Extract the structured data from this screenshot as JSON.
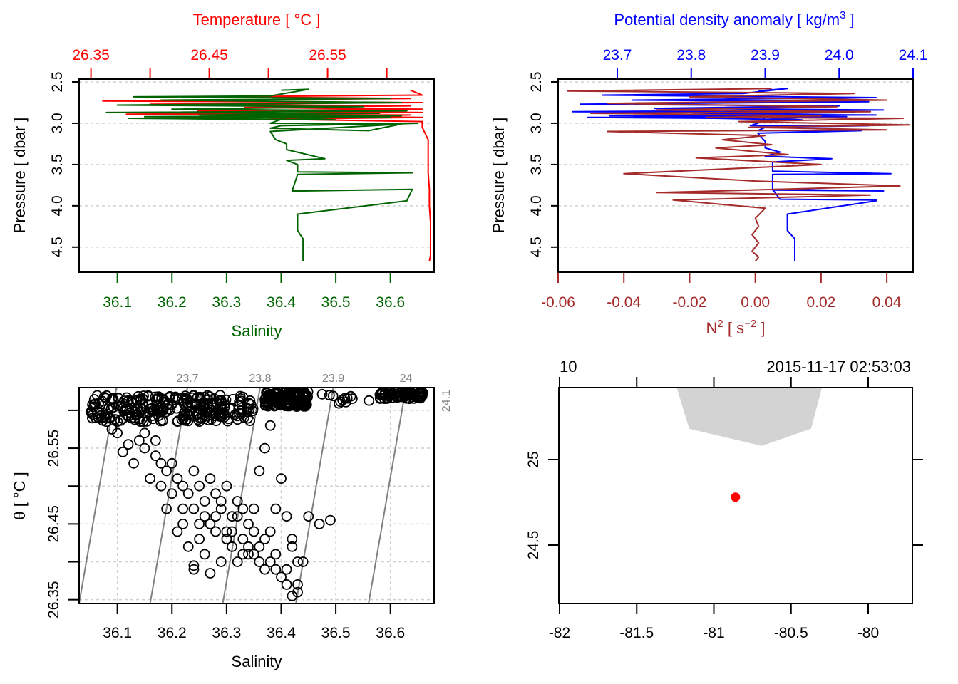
{
  "chart_data": [
    {
      "id": "profile-ts",
      "type": "line",
      "title": "",
      "ylabel": "Pressure [ dbar ]",
      "ylim": [
        2.5,
        4.7
      ],
      "y_reversed": true,
      "yticks": [
        2.5,
        3.0,
        3.5,
        4.0,
        4.5
      ],
      "ytick_labels": [
        "2.5",
        "3.0",
        "3.5",
        "4.0",
        "4.5"
      ],
      "grid": "horizontal-dotted",
      "top_axis": {
        "label": "Temperature [ °C ]",
        "color": "#ff0000",
        "range": [
          26.34,
          26.64
        ],
        "ticks": [
          26.35,
          26.4,
          26.45,
          26.5,
          26.55,
          26.6
        ],
        "tick_labels": [
          "26.35",
          "",
          "26.45",
          "",
          "26.55",
          ""
        ]
      },
      "bottom_axis": {
        "label": "Salinity",
        "color": "#006400",
        "range": [
          36.03,
          36.68
        ],
        "ticks": [
          36.1,
          36.2,
          36.3,
          36.4,
          36.5,
          36.6
        ],
        "tick_labels": [
          "36.1",
          "36.2",
          "36.3",
          "36.4",
          "36.5",
          "36.6"
        ]
      },
      "series": [
        {
          "name": "Temperature",
          "axis": "top",
          "color": "#ff0000",
          "x": [
            26.62,
            26.63,
            26.45,
            26.62,
            26.36,
            26.63,
            26.4,
            26.62,
            26.48,
            26.63,
            26.44,
            26.63,
            26.38,
            26.62,
            26.55,
            26.63,
            26.5,
            26.63,
            26.63,
            26.635,
            26.635,
            26.635,
            26.636,
            26.636,
            26.637,
            26.637,
            26.637,
            26.636
          ],
          "y": [
            2.6,
            2.66,
            2.68,
            2.7,
            2.73,
            2.75,
            2.77,
            2.79,
            2.81,
            2.83,
            2.85,
            2.87,
            2.89,
            2.9,
            2.92,
            2.93,
            2.95,
            2.98,
            3.05,
            3.2,
            3.4,
            3.6,
            3.8,
            4.0,
            4.2,
            4.4,
            4.6,
            4.67
          ]
        },
        {
          "name": "Salinity",
          "axis": "bottom",
          "color": "#006400",
          "x": [
            36.4,
            36.45,
            36.38,
            36.13,
            36.6,
            36.18,
            36.62,
            36.1,
            36.55,
            36.2,
            36.63,
            36.08,
            36.58,
            36.25,
            36.62,
            36.15,
            36.6,
            36.12,
            36.3,
            36.5,
            36.41,
            36.38,
            36.6,
            36.65,
            36.4,
            36.38,
            36.56,
            36.62,
            36.38,
            36.39,
            36.41,
            36.41,
            36.48,
            36.41,
            36.43,
            36.43,
            36.64,
            36.43,
            36.42,
            36.44,
            36.64,
            36.63,
            36.63,
            36.43,
            36.43,
            36.43,
            36.44,
            36.44,
            36.44
          ],
          "y": [
            2.6,
            2.59,
            2.67,
            2.68,
            2.7,
            2.72,
            2.75,
            2.78,
            2.8,
            2.83,
            2.85,
            2.87,
            2.88,
            2.9,
            2.91,
            2.92,
            2.93,
            2.94,
            2.95,
            2.96,
            2.93,
            3.0,
            3.01,
            3.0,
            3.03,
            3.06,
            3.09,
            3.01,
            3.1,
            3.2,
            3.25,
            3.32,
            3.43,
            3.45,
            3.5,
            3.59,
            3.6,
            3.62,
            3.82,
            3.82,
            3.8,
            3.94,
            3.94,
            4.1,
            4.2,
            4.3,
            4.4,
            4.5,
            4.67
          ]
        }
      ]
    },
    {
      "id": "profile-density-n2",
      "type": "line",
      "title": "",
      "ylabel": "Pressure [ dbar ]",
      "ylim": [
        2.5,
        4.7
      ],
      "y_reversed": true,
      "yticks": [
        2.5,
        3.0,
        3.5,
        4.0,
        4.5
      ],
      "ytick_labels": [
        "2.5",
        "3.0",
        "3.5",
        "4.0",
        "4.5"
      ],
      "grid": "horizontal-dotted",
      "top_axis": {
        "label": "Potential density anomaly [ kg/m",
        "label_sup": "3",
        "label_end": " ]",
        "color": "#0000ff",
        "range": [
          23.62,
          24.1
        ],
        "ticks": [
          23.7,
          23.8,
          23.9,
          24.0,
          24.1
        ],
        "tick_labels": [
          "23.7",
          "23.8",
          "23.9",
          "24.0",
          "24.1"
        ]
      },
      "bottom_axis": {
        "label": "N",
        "label_sup": "2",
        "label_mid": " [ s",
        "label_sup2": "−2",
        "label_end": " ]",
        "color": "#a52a2a",
        "range": [
          -0.06,
          0.048
        ],
        "ticks": [
          -0.06,
          -0.04,
          -0.02,
          0.0,
          0.02,
          0.04
        ],
        "tick_labels": [
          "-0.06",
          "-0.04",
          "-0.02",
          "0.00",
          "0.02",
          "0.04"
        ]
      },
      "series": [
        {
          "name": "Potential density anomaly",
          "axis": "top",
          "color": "#0000ff",
          "x": [
            23.89,
            23.93,
            23.87,
            23.68,
            24.05,
            23.72,
            24.04,
            23.65,
            24.0,
            23.75,
            24.06,
            23.64,
            24.02,
            23.8,
            24.05,
            23.69,
            24.01,
            23.66,
            23.83,
            23.95,
            23.9,
            23.89,
            23.88,
            24.04,
            23.9,
            23.89,
            24.03,
            23.89,
            23.9,
            23.9,
            23.92,
            23.9,
            23.99,
            23.91,
            23.91,
            24.07,
            23.91,
            23.91,
            24.06,
            23.91,
            23.92,
            24.05,
            24.05,
            23.93,
            23.93,
            23.93,
            23.94,
            23.94
          ],
          "y": [
            2.61,
            2.58,
            2.64,
            2.66,
            2.69,
            2.72,
            2.74,
            2.77,
            2.79,
            2.82,
            2.84,
            2.86,
            2.87,
            2.89,
            2.9,
            2.91,
            2.92,
            2.93,
            2.94,
            2.96,
            2.93,
            3.0,
            3.03,
            3.03,
            3.05,
            3.09,
            3.09,
            3.12,
            3.22,
            3.3,
            3.35,
            3.4,
            3.43,
            3.47,
            3.58,
            3.61,
            3.62,
            3.81,
            3.82,
            3.8,
            3.92,
            3.93,
            3.94,
            4.1,
            4.2,
            4.3,
            4.4,
            4.67
          ]
        },
        {
          "name": "N2",
          "axis": "bottom",
          "color": "#a52a2a",
          "x": [
            0.005,
            -0.057,
            0.03,
            -0.02,
            0.04,
            -0.045,
            0.025,
            -0.03,
            0.035,
            -0.05,
            0.02,
            -0.015,
            0.045,
            -0.005,
            0.047,
            -0.002,
            0.04,
            -0.045,
            0.003,
            -0.01,
            0.005,
            -0.012,
            0.01,
            -0.018,
            0.02,
            -0.04,
            0.0,
            0.044,
            -0.03,
            0.035,
            -0.025,
            0.003,
            0.0,
            0.001,
            -0.001,
            0.001,
            -0.001,
            0.001,
            0.0
          ],
          "y": [
            2.58,
            2.61,
            2.64,
            2.68,
            2.72,
            2.76,
            2.8,
            2.84,
            2.86,
            2.88,
            2.91,
            2.93,
            2.94,
            2.98,
            3.02,
            3.05,
            3.08,
            3.1,
            3.15,
            3.2,
            3.26,
            3.3,
            3.38,
            3.42,
            3.5,
            3.61,
            3.7,
            3.76,
            3.84,
            3.87,
            3.93,
            4.03,
            4.15,
            4.25,
            4.35,
            4.45,
            4.55,
            4.62,
            4.67
          ]
        }
      ]
    },
    {
      "id": "ts-diagram",
      "type": "scatter",
      "title": "",
      "xlabel": "Salinity",
      "ylabel": "θ [ °C ]",
      "xlim": [
        36.03,
        36.68
      ],
      "ylim": [
        26.345,
        26.63
      ],
      "xticks": [
        36.1,
        36.2,
        36.3,
        36.4,
        36.5,
        36.6
      ],
      "xtick_labels": [
        "36.1",
        "36.2",
        "36.3",
        "36.4",
        "36.5",
        "36.6"
      ],
      "yticks": [
        26.35,
        26.4,
        26.45,
        26.5,
        26.55,
        26.6
      ],
      "ytick_labels": [
        "26.35",
        "",
        "26.45",
        "",
        "26.55",
        ""
      ],
      "grid": "dotted",
      "isopycnals": {
        "color": "#808080",
        "levels": [
          23.6,
          23.7,
          23.8,
          23.9,
          24.0,
          24.1
        ],
        "labels": [
          "",
          "23.7",
          "23.8",
          "23.9",
          "24",
          "24.1"
        ],
        "bottom_salinity": [
          36.03,
          36.16,
          36.293,
          36.427,
          36.56,
          36.693
        ],
        "slope_s_per_degC": 0.24
      },
      "point_clusters": [
        {
          "s_min": 36.05,
          "s_max": 36.35,
          "t_min": 26.585,
          "t_max": 26.62,
          "n": 260
        },
        {
          "s_min": 36.37,
          "s_max": 36.45,
          "t_min": 26.605,
          "t_max": 26.625,
          "n": 150
        },
        {
          "s_min": 36.58,
          "s_max": 36.66,
          "t_min": 26.615,
          "t_max": 26.625,
          "n": 80
        },
        {
          "s_min": 36.45,
          "s_max": 36.57,
          "t_min": 26.608,
          "t_max": 26.622,
          "n": 12
        }
      ],
      "points": {
        "salinity": [
          36.06,
          36.08,
          36.09,
          36.1,
          36.12,
          36.11,
          36.14,
          36.15,
          36.17,
          36.18,
          36.19,
          36.2,
          36.21,
          36.22,
          36.23,
          36.24,
          36.25,
          36.26,
          36.27,
          36.28,
          36.29,
          36.3,
          36.31,
          36.32,
          36.33,
          36.34,
          36.35,
          36.36,
          36.37,
          36.38,
          36.39,
          36.4,
          36.41,
          36.42,
          36.43,
          36.13,
          36.16,
          36.19,
          36.22,
          36.25,
          36.28,
          36.31,
          36.34,
          36.37,
          36.2,
          36.24,
          36.27,
          36.3,
          36.33,
          36.36,
          36.39,
          36.42,
          36.45,
          36.47,
          36.49,
          36.18,
          36.21,
          36.23,
          36.26,
          36.29,
          36.32,
          36.35,
          36.38,
          36.41,
          36.44,
          36.25,
          36.28,
          36.31,
          36.34,
          36.37,
          36.4,
          36.43,
          36.22,
          36.26,
          36.3,
          36.33,
          36.36,
          36.39,
          36.41,
          36.43,
          36.42,
          36.15,
          36.17,
          36.24,
          36.29,
          36.32,
          36.35,
          36.38,
          36.27,
          36.24
        ],
        "theta": [
          26.59,
          26.585,
          26.575,
          26.57,
          26.555,
          26.545,
          26.56,
          26.55,
          26.54,
          26.53,
          26.52,
          26.53,
          26.51,
          26.5,
          26.49,
          26.52,
          26.5,
          26.48,
          26.51,
          26.49,
          26.47,
          26.5,
          26.46,
          26.48,
          26.47,
          26.45,
          26.44,
          26.52,
          26.55,
          26.58,
          26.47,
          26.51,
          26.46,
          26.43,
          26.4,
          26.53,
          26.51,
          26.47,
          26.45,
          26.43,
          26.46,
          26.44,
          26.42,
          26.43,
          26.49,
          26.47,
          26.45,
          26.43,
          26.41,
          26.42,
          26.41,
          26.42,
          26.46,
          26.45,
          26.455,
          26.5,
          26.44,
          26.42,
          26.41,
          26.4,
          26.4,
          26.41,
          26.4,
          26.39,
          26.4,
          26.45,
          26.44,
          26.42,
          26.41,
          26.39,
          26.38,
          26.37,
          26.47,
          26.46,
          26.44,
          26.43,
          26.4,
          26.39,
          26.37,
          26.36,
          26.355,
          26.57,
          26.56,
          26.39,
          26.48,
          26.46,
          26.47,
          26.44,
          26.385,
          26.395
        ]
      }
    },
    {
      "id": "station-map",
      "type": "scatter",
      "title": "",
      "xlim": [
        -82,
        -79.85
      ],
      "ylim": [
        24.3,
        25.42
      ],
      "xticks": [
        -82,
        -81.5,
        -81,
        -80.5,
        -80
      ],
      "xtick_labels": [
        "-82",
        "-81.5",
        "-81",
        "-80.5",
        "-80"
      ],
      "yticks": [
        24.5,
        25
      ],
      "ytick_labels": [
        "24.5",
        "25"
      ],
      "top_labels": [
        "10",
        "2015-11-17 02:53:03"
      ],
      "land_color": "#d3d3d3",
      "land_polygon": {
        "lon": [
          -81.24,
          -81.16,
          -80.69,
          -80.37,
          -80.3
        ],
        "lat": [
          25.42,
          25.18,
          25.08,
          25.18,
          25.42
        ]
      },
      "station": {
        "lon": -80.86,
        "lat": 24.78,
        "color": "#ff0000"
      }
    }
  ]
}
